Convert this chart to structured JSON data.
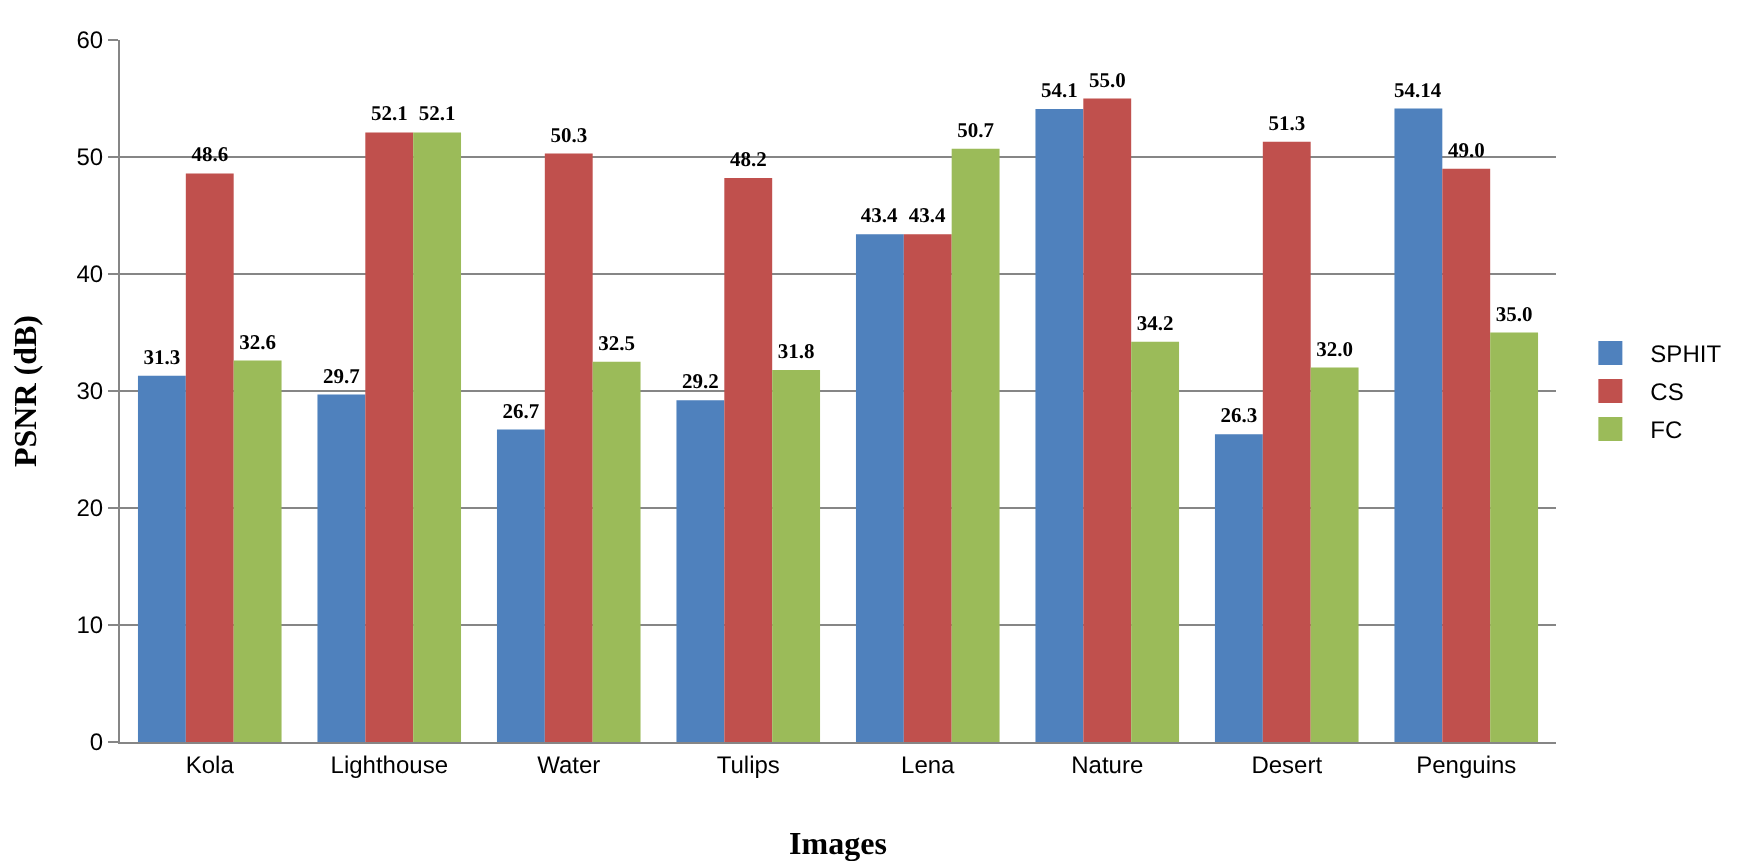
{
  "chart_data": {
    "type": "bar",
    "xlabel": "Images",
    "ylabel": "PSNR (dB)",
    "categories": [
      "Kola",
      "Lighthouse",
      "Water",
      "Tulips",
      "Lena",
      "Nature",
      "Desert",
      "Penguins"
    ],
    "series": [
      {
        "name": "SPHIT",
        "color": "#4f81bd",
        "values": [
          31.3,
          29.7,
          26.7,
          29.2,
          43.4,
          54.1,
          26.3,
          54.14
        ],
        "value_labels": [
          "31.3",
          "29.7",
          "26.7",
          "29.2",
          "43.4",
          "54.1",
          "26.3",
          "54.14"
        ]
      },
      {
        "name": "CS",
        "color": "#c0504d",
        "values": [
          48.6,
          52.1,
          50.3,
          48.2,
          43.4,
          55.0,
          51.3,
          49.0
        ],
        "value_labels": [
          "48.6",
          "52.1",
          "50.3",
          "48.2",
          "43.4",
          "55.0",
          "51.3",
          "49.0"
        ]
      },
      {
        "name": "FC",
        "color": "#9bbb59",
        "values": [
          32.6,
          52.1,
          32.5,
          31.8,
          50.7,
          34.2,
          32.0,
          35.0
        ],
        "value_labels": [
          "32.6",
          "52.1",
          "32.5",
          "31.8",
          "50.7",
          "34.2",
          "32.0",
          "35.0"
        ]
      }
    ],
    "ylim": [
      0,
      60
    ],
    "yticks": [
      0,
      10,
      20,
      30,
      40,
      50,
      60
    ],
    "grid": "y",
    "legend": "right"
  }
}
